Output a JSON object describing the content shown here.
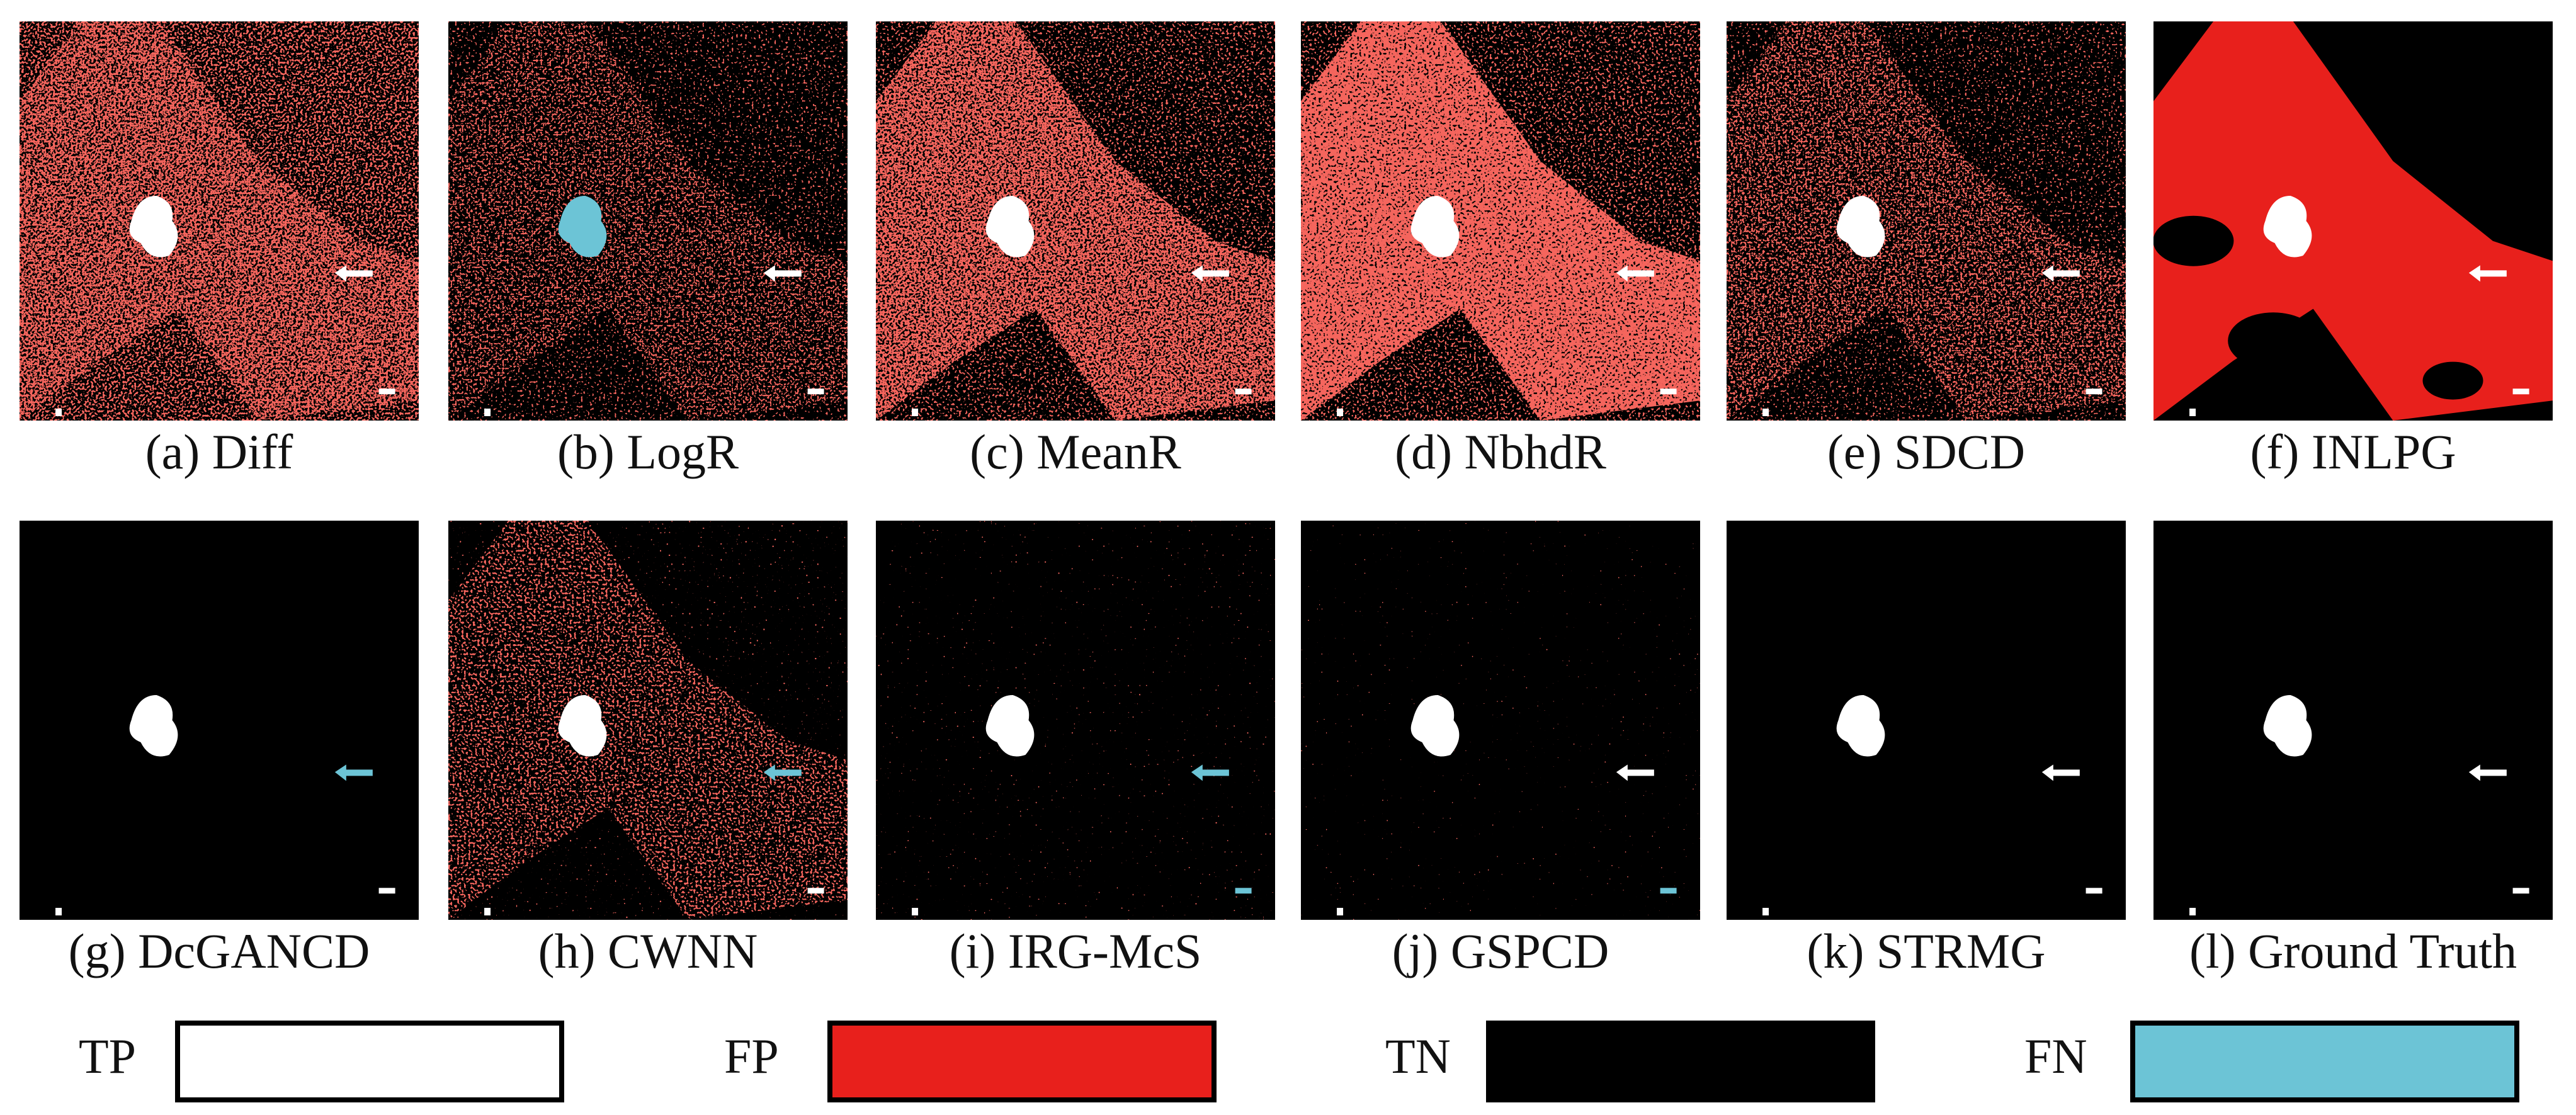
{
  "panels": [
    {
      "label": "(a) Diff"
    },
    {
      "label": "(b) LogR"
    },
    {
      "label": "(c) MeanR"
    },
    {
      "label": "(d) NbhdR"
    },
    {
      "label": "(e) SDCD"
    },
    {
      "label": "(f) INLPG"
    },
    {
      "label": "(g) DcGANCD"
    },
    {
      "label": "(h) CWNN"
    },
    {
      "label": "(i) IRG-McS"
    },
    {
      "label": "(j) GSPCD"
    },
    {
      "label": "(k) STRMG"
    },
    {
      "label": "(l) Ground Truth"
    }
  ],
  "legend": [
    {
      "label": "TP",
      "color": "#ffffff"
    },
    {
      "label": "FP",
      "color": "#e8201c"
    },
    {
      "label": "TN",
      "color": "#000000"
    },
    {
      "label": "FN",
      "color": "#6cc4d6"
    }
  ]
}
